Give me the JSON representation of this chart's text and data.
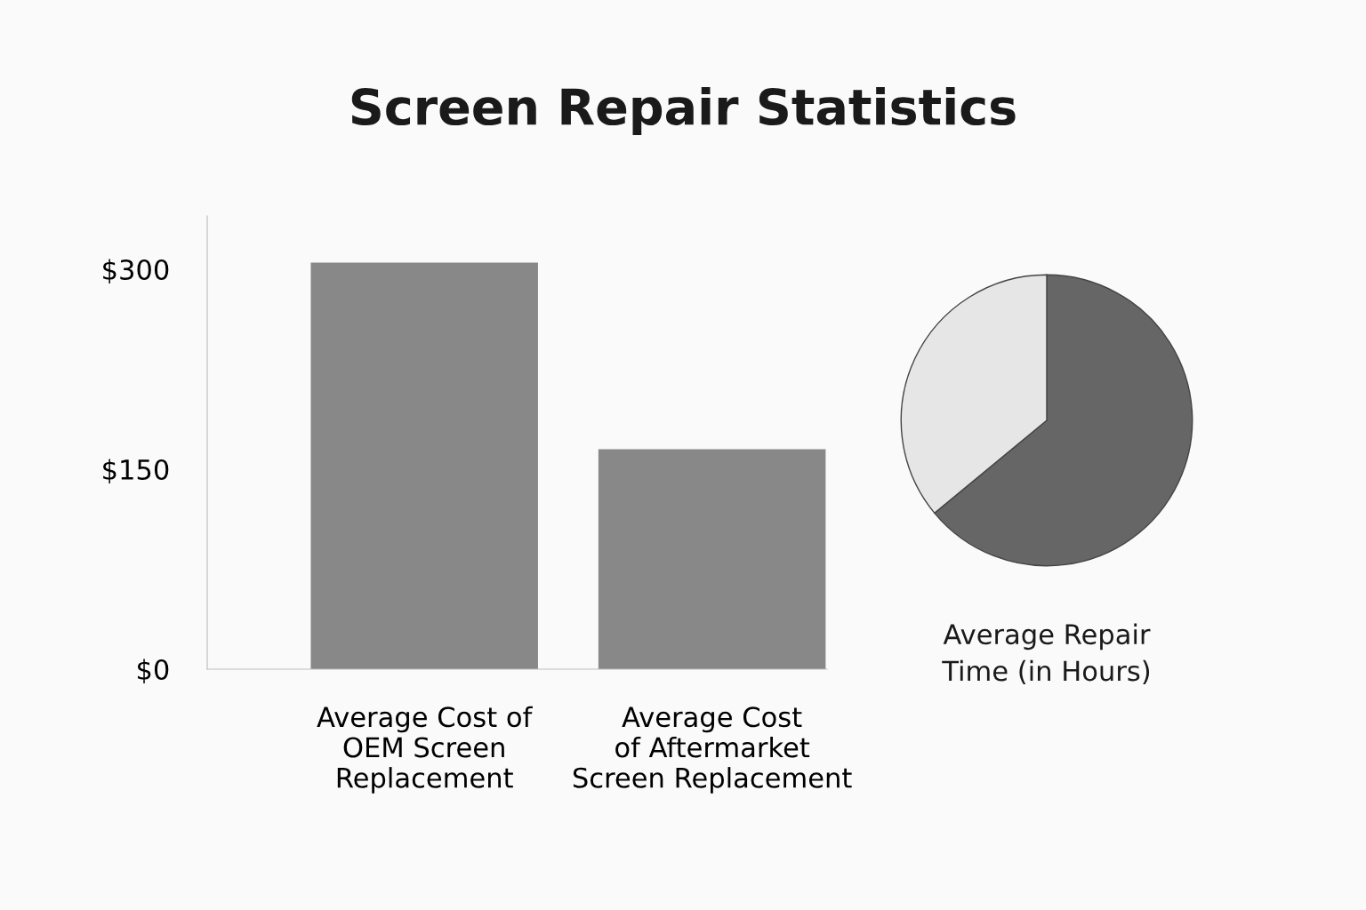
{
  "chart_data": [
    {
      "type": "bar",
      "title": "Screen Repair Statistics",
      "categories": [
        "Average Cost of\nOEM Screen\nReplacement",
        "Average Cost\nof Aftermarket\nScreen Replacement"
      ],
      "values": [
        305,
        165
      ],
      "color": "#888888",
      "ylim": [
        0,
        340
      ],
      "yticks": [
        {
          "value": 0,
          "label": "$0"
        },
        {
          "value": 150,
          "label": "$150"
        },
        {
          "value": 300,
          "label": "$300"
        }
      ],
      "grid": false,
      "legend": false
    },
    {
      "type": "pie",
      "title": "Average Repair\nTime (in Hours)",
      "categories": [
        null,
        null
      ],
      "values": [
        64,
        36
      ],
      "colors": [
        "#666666",
        "#e6e6e6"
      ],
      "legend": false
    }
  ]
}
